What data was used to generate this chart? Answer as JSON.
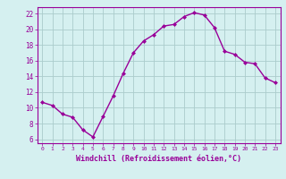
{
  "x": [
    0,
    1,
    2,
    3,
    4,
    5,
    6,
    7,
    8,
    9,
    10,
    11,
    12,
    13,
    14,
    15,
    16,
    17,
    18,
    19,
    20,
    21,
    22,
    23
  ],
  "y": [
    10.7,
    10.3,
    9.2,
    8.8,
    7.2,
    6.3,
    8.9,
    11.5,
    14.4,
    17.0,
    18.5,
    19.3,
    20.4,
    20.6,
    21.6,
    22.1,
    21.8,
    20.2,
    17.2,
    16.8,
    15.8,
    15.6,
    13.8,
    13.2
  ],
  "line_color": "#990099",
  "marker": "D",
  "markersize": 2,
  "linewidth": 1.0,
  "xlabel": "Windchill (Refroidissement éolien,°C)",
  "xlim": [
    -0.5,
    23.5
  ],
  "ylim": [
    5.5,
    22.8
  ],
  "yticks": [
    6,
    8,
    10,
    12,
    14,
    16,
    18,
    20,
    22
  ],
  "xticks": [
    0,
    1,
    2,
    3,
    4,
    5,
    6,
    7,
    8,
    9,
    10,
    11,
    12,
    13,
    14,
    15,
    16,
    17,
    18,
    19,
    20,
    21,
    22,
    23
  ],
  "bg_color": "#d5f0f0",
  "grid_color": "#aacccc",
  "tick_color": "#990099",
  "label_color": "#990099",
  "spine_color": "#990099"
}
